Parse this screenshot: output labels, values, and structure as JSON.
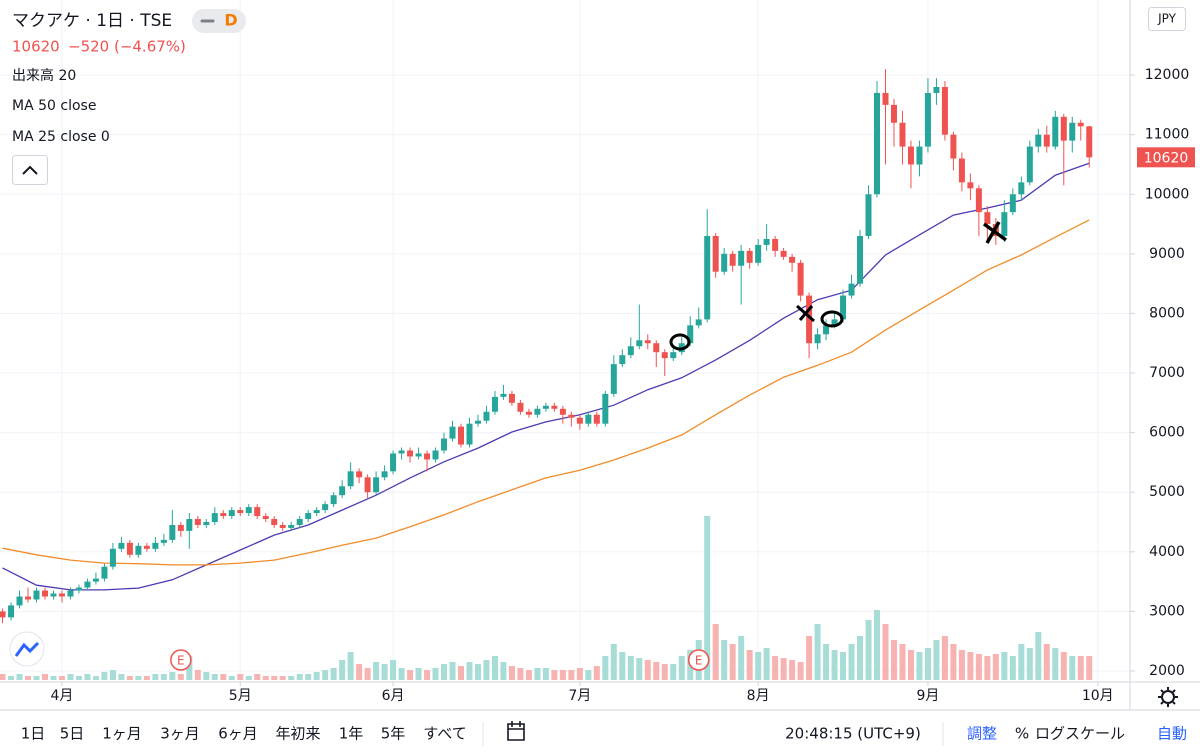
{
  "header": {
    "title": "マクアケ · 1日 · TSE",
    "badge": "D",
    "last": "10620",
    "change": "−520 (−4.67%)",
    "indicators": [
      "出来高 20",
      "MA 50 close",
      "MA 25 close 0"
    ],
    "currency": "JPY"
  },
  "toolbar": {
    "ranges": [
      "1日",
      "5日",
      "1ヶ月",
      "3ヶ月",
      "6ヶ月",
      "年初来",
      "1年",
      "5年",
      "すべて"
    ],
    "clock": "20:48:15 (UTC+9)",
    "options": [
      "調整",
      "%",
      "ログスケール",
      "自動"
    ]
  },
  "chart_data": {
    "type": "candlestick",
    "xlim": [
      -0.3,
      132.8
    ],
    "xticks": [
      {
        "value": 7,
        "label": "4月"
      },
      {
        "value": 28,
        "label": "5月"
      },
      {
        "value": 46,
        "label": "6月"
      },
      {
        "value": 68,
        "label": "7月"
      },
      {
        "value": 89,
        "label": "8月"
      },
      {
        "value": 109,
        "label": "9月"
      },
      {
        "value": 129,
        "label": "10月"
      }
    ],
    "ylim": [
      1815,
      13260
    ],
    "yticks": [
      2000,
      3000,
      4000,
      5000,
      6000,
      7000,
      8000,
      9000,
      10000,
      11000,
      12000
    ],
    "grid": true,
    "up_color": "#26a69a",
    "down_color": "#ef5350",
    "open": [
      3000,
      2900,
      3100,
      3250,
      3200,
      3350,
      3250,
      3300,
      3250,
      3350,
      3400,
      3500,
      3550,
      3750,
      4050,
      4150,
      3950,
      4100,
      4050,
      4150,
      4200,
      4450,
      4350,
      4550,
      4450,
      4500,
      4650,
      4600,
      4700,
      4650,
      4750,
      4600,
      4550,
      4450,
      4400,
      4450,
      4550,
      4650,
      4700,
      4800,
      4950,
      5100,
      5350,
      5250,
      5000,
      5250,
      5350,
      5650,
      5700,
      5600,
      5650,
      5550,
      5700,
      5900,
      6100,
      5800,
      6150,
      6200,
      6350,
      6600,
      6650,
      6500,
      6350,
      6300,
      6400,
      6450,
      6400,
      6300,
      6250,
      6150,
      6300,
      6150,
      6650,
      7150,
      7300,
      7450,
      7550,
      7500,
      7350,
      7250,
      7350,
      7500,
      7800,
      7900,
      9300,
      8700,
      9000,
      8800,
      9050,
      8850,
      9150,
      9250,
      9050,
      8950,
      8850,
      8300,
      7500,
      7650,
      7800,
      7900,
      8300,
      8500,
      9300,
      10000,
      11700,
      11500,
      11200,
      10800,
      10500,
      10800,
      11700,
      11800,
      11000,
      10600,
      10200,
      10100,
      9700,
      9500,
      9300,
      9700,
      10000,
      10200,
      10800,
      11000,
      10800,
      11300,
      10900,
      11200,
      11140
    ],
    "high": [
      3050,
      3150,
      3350,
      3400,
      3400,
      3400,
      3350,
      3350,
      3400,
      3450,
      3550,
      3650,
      3800,
      4150,
      4250,
      4200,
      4150,
      4150,
      4250,
      4300,
      4700,
      4500,
      4650,
      4600,
      4550,
      4750,
      4700,
      4750,
      4750,
      4800,
      4800,
      4650,
      4600,
      4500,
      4500,
      4600,
      4700,
      4750,
      4850,
      5000,
      5200,
      5500,
      5400,
      5300,
      5350,
      5450,
      5700,
      5750,
      5750,
      5750,
      5700,
      5750,
      6000,
      6200,
      6150,
      6250,
      6300,
      6450,
      6700,
      6800,
      6700,
      6550,
      6400,
      6450,
      6500,
      6500,
      6450,
      6350,
      6300,
      6350,
      6350,
      6700,
      7300,
      7400,
      7600,
      8150,
      7650,
      7550,
      7400,
      7450,
      7600,
      7950,
      8100,
      9750,
      9350,
      9100,
      9050,
      9150,
      9100,
      9250,
      9500,
      9300,
      9100,
      9000,
      8900,
      8350,
      7750,
      7900,
      8000,
      8400,
      8650,
      9400,
      10150,
      11900,
      12100,
      11600,
      11400,
      10900,
      10900,
      11950,
      11950,
      11900,
      11050,
      10700,
      10350,
      10150,
      9800,
      9600,
      9900,
      10100,
      10300,
      10900,
      11100,
      11150,
      11400,
      11350,
      11300,
      11250,
      11150
    ],
    "low": [
      2800,
      2850,
      3050,
      3150,
      3150,
      3200,
      3200,
      3150,
      3200,
      3300,
      3350,
      3450,
      3500,
      3700,
      4000,
      3900,
      3900,
      4000,
      4000,
      4100,
      4150,
      4250,
      4050,
      4400,
      4400,
      4450,
      4550,
      4550,
      4600,
      4600,
      4550,
      4500,
      4400,
      4350,
      4350,
      4400,
      4500,
      4600,
      4650,
      4750,
      4900,
      5050,
      5150,
      4900,
      4950,
      5200,
      5300,
      5550,
      5500,
      5550,
      5350,
      5500,
      5650,
      5850,
      5750,
      5750,
      6100,
      6150,
      6300,
      6550,
      6450,
      6300,
      6250,
      6250,
      6350,
      6350,
      6150,
      6100,
      6050,
      6100,
      6100,
      6100,
      6600,
      7100,
      7250,
      7400,
      7400,
      7100,
      6950,
      7200,
      7300,
      7450,
      7750,
      7850,
      8600,
      8650,
      8700,
      8150,
      8750,
      8800,
      9050,
      8950,
      8900,
      8700,
      8200,
      7250,
      7400,
      7550,
      7750,
      7850,
      8250,
      8450,
      9250,
      9950,
      10500,
      10800,
      10500,
      10100,
      10300,
      10700,
      11500,
      10900,
      10400,
      10050,
      9900,
      9300,
      9200,
      9150,
      9200,
      9650,
      9900,
      10150,
      10700,
      10700,
      10750,
      10150,
      10700,
      10900,
      10450
    ],
    "close": [
      2900,
      3100,
      3250,
      3200,
      3350,
      3250,
      3300,
      3250,
      3350,
      3400,
      3500,
      3550,
      3750,
      4050,
      4150,
      3950,
      4100,
      4050,
      4150,
      4200,
      4450,
      4350,
      4550,
      4450,
      4500,
      4650,
      4600,
      4700,
      4650,
      4750,
      4600,
      4550,
      4450,
      4400,
      4450,
      4550,
      4650,
      4700,
      4800,
      4950,
      5100,
      5350,
      5250,
      5000,
      5250,
      5350,
      5650,
      5700,
      5600,
      5650,
      5550,
      5700,
      5900,
      6100,
      5800,
      6150,
      6200,
      6350,
      6600,
      6650,
      6500,
      6350,
      6300,
      6400,
      6450,
      6400,
      6300,
      6250,
      6150,
      6300,
      6150,
      6650,
      7150,
      7300,
      7450,
      7550,
      7500,
      7350,
      7250,
      7350,
      7500,
      7800,
      7900,
      9300,
      8700,
      9000,
      8800,
      9050,
      8850,
      9150,
      9250,
      9050,
      8950,
      8850,
      8300,
      7500,
      7650,
      7800,
      7900,
      8300,
      8500,
      9300,
      10000,
      11700,
      11500,
      11200,
      10800,
      10500,
      10800,
      11700,
      11800,
      11000,
      10600,
      10200,
      10100,
      9700,
      9500,
      9300,
      9700,
      10000,
      10200,
      10800,
      11000,
      10800,
      11300,
      10900,
      11200,
      11140,
      10620
    ],
    "volume": [
      3,
      2,
      3,
      2,
      2,
      3,
      2,
      2,
      3,
      2,
      3,
      2,
      4,
      5,
      3,
      2,
      2,
      2,
      3,
      3,
      4,
      3,
      12,
      5,
      4,
      3,
      3,
      2,
      3,
      2,
      3,
      2,
      2,
      2,
      2,
      3,
      3,
      4,
      5,
      6,
      10,
      14,
      8,
      6,
      9,
      8,
      10,
      6,
      5,
      6,
      5,
      6,
      8,
      9,
      7,
      9,
      8,
      10,
      12,
      9,
      7,
      6,
      5,
      6,
      6,
      5,
      5,
      5,
      6,
      5,
      7,
      12,
      18,
      14,
      12,
      11,
      10,
      9,
      8,
      8,
      12,
      15,
      20,
      82,
      28,
      20,
      18,
      22,
      15,
      14,
      16,
      12,
      11,
      10,
      9,
      22,
      28,
      18,
      15,
      14,
      18,
      22,
      30,
      35,
      28,
      20,
      18,
      15,
      14,
      16,
      20,
      22,
      18,
      15,
      14,
      13,
      12,
      13,
      14,
      12,
      18,
      16,
      24,
      18,
      16,
      14,
      12,
      12,
      12
    ],
    "volume_color_up": "#a8dcd6",
    "volume_color_down": "#f7b3b1",
    "ma_x": [
      0,
      4,
      8,
      12,
      16,
      20,
      24,
      28,
      32,
      36,
      40,
      44,
      48,
      52,
      56,
      60,
      64,
      68,
      72,
      76,
      80,
      84,
      88,
      92,
      96,
      100,
      104,
      108,
      112,
      116,
      120,
      124,
      128
    ],
    "series": [
      {
        "name": "MA 25",
        "color": "#4b3bb3",
        "values": [
          3730,
          3440,
          3360,
          3360,
          3390,
          3530,
          3780,
          4030,
          4280,
          4450,
          4700,
          4950,
          5240,
          5510,
          5740,
          6010,
          6180,
          6300,
          6460,
          6720,
          6920,
          7220,
          7550,
          7920,
          8230,
          8390,
          8980,
          9320,
          9650,
          9770,
          9900,
          10320,
          10520
        ]
      },
      {
        "name": "MA 50",
        "color": "#f28c28",
        "values": [
          4060,
          3950,
          3860,
          3810,
          3800,
          3780,
          3780,
          3810,
          3860,
          3980,
          4110,
          4230,
          4420,
          4620,
          4840,
          5040,
          5240,
          5370,
          5540,
          5740,
          5960,
          6300,
          6630,
          6930,
          7130,
          7350,
          7720,
          8060,
          8390,
          8730,
          8980,
          9280,
          9570
        ]
      }
    ],
    "earnings_markers": [
      {
        "x": 21,
        "label": "E"
      },
      {
        "x": 82,
        "label": "E"
      }
    ]
  }
}
